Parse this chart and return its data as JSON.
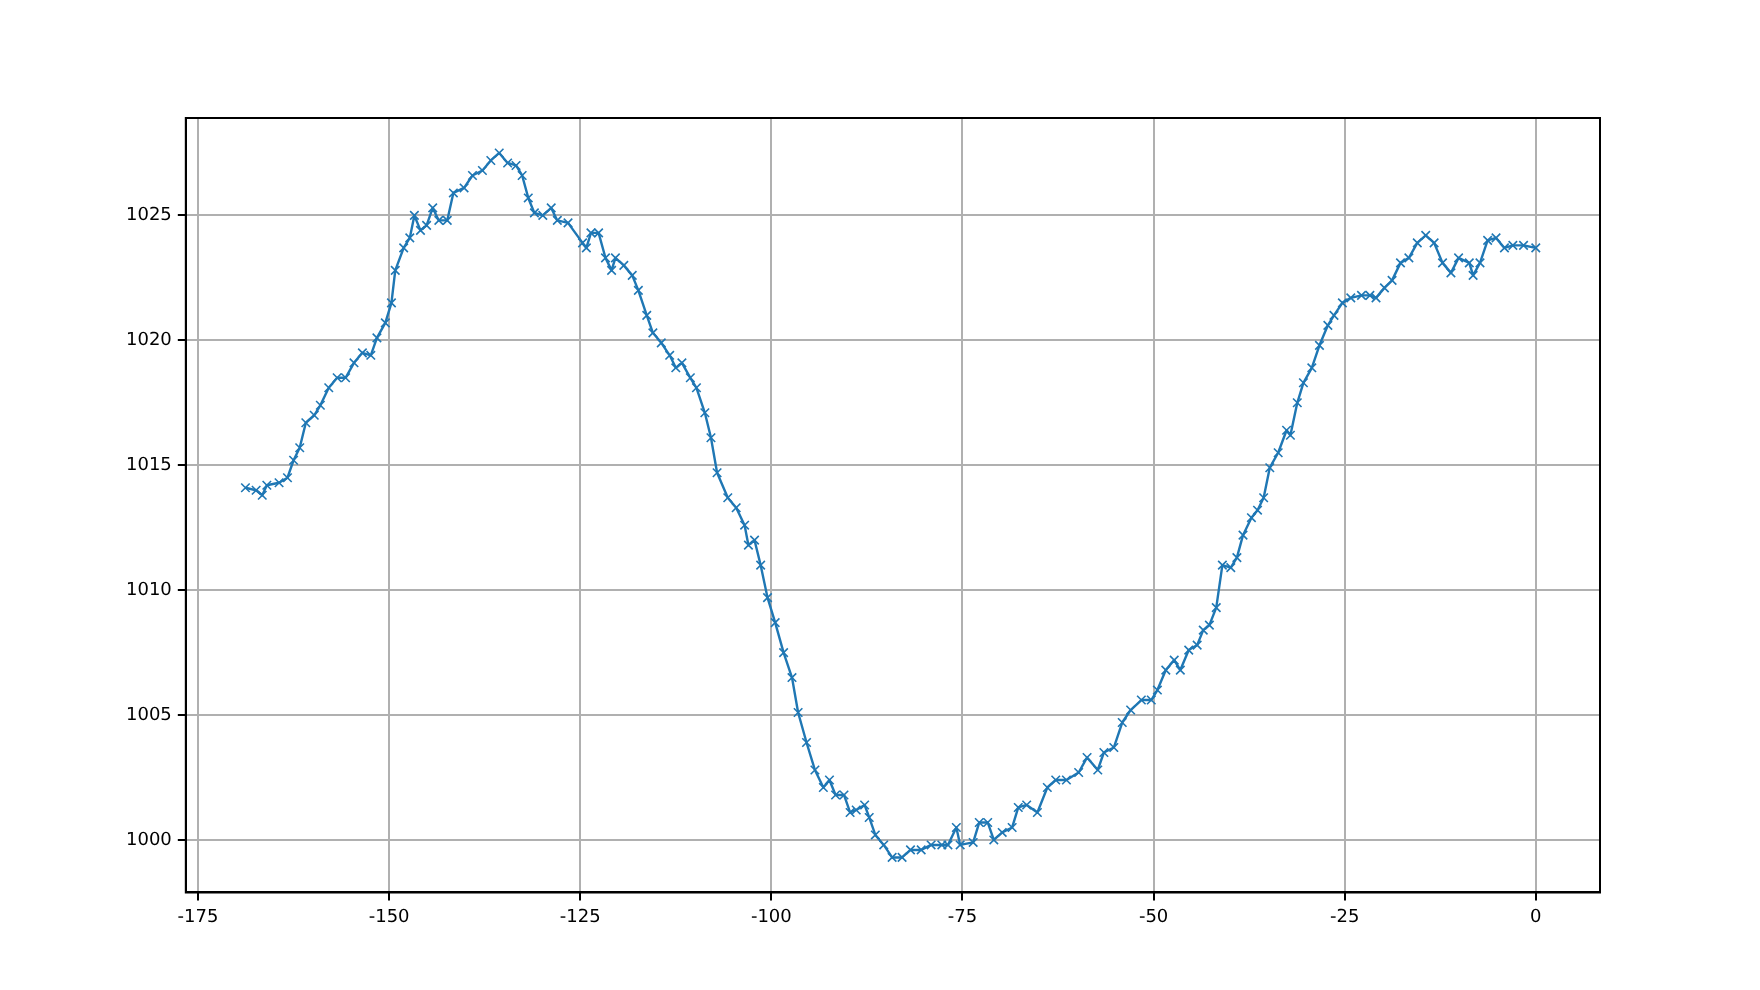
{
  "chart_data": {
    "type": "line",
    "color": "#1f77b4",
    "marker": "cross",
    "grid": true,
    "xlim": [
      -176.6,
      8.4
    ],
    "ylim": [
      997.9,
      1028.9
    ],
    "xticks": [
      -175,
      -150,
      -125,
      -100,
      -75,
      -50,
      -25,
      0
    ],
    "yticks": [
      1000,
      1005,
      1010,
      1015,
      1020,
      1025
    ],
    "x": [
      -168.8,
      -167.4,
      -166.6,
      -166,
      -164.4,
      -163.3,
      -162.5,
      -161.7,
      -160.9,
      -159.8,
      -159,
      -157.9,
      -156.8,
      -155.7,
      -154.6,
      -153.5,
      -152.4,
      -151.6,
      -150.5,
      -149.7,
      -149.2,
      -148.1,
      -147.3,
      -146.7,
      -145.9,
      -145.1,
      -144.3,
      -143.5,
      -142.4,
      -141.6,
      -140.2,
      -139.1,
      -137.8,
      -136.7,
      -135.6,
      -134.5,
      -133.4,
      -132.6,
      -131.8,
      -131,
      -129.9,
      -128.8,
      -128,
      -126.6,
      -124.7,
      -124.2,
      -123.6,
      -122.6,
      -121.7,
      -120.9,
      -120.4,
      -119.3,
      -118.2,
      -117.4,
      -116.3,
      -115.5,
      -114.4,
      -113.3,
      -112.5,
      -111.7,
      -110.6,
      -109.8,
      -108.7,
      -107.9,
      -107.1,
      -105.7,
      -104.6,
      -103.5,
      -103,
      -102.2,
      -101.4,
      -100.5,
      -99.5,
      -98.4,
      -97.3,
      -96.5,
      -95.4,
      -94.3,
      -93.2,
      -92.4,
      -91.6,
      -90.5,
      -89.7,
      -88.9,
      -87.8,
      -87.2,
      -86.4,
      -85.3,
      -84.2,
      -82.9,
      -81.8,
      -80.4,
      -79.1,
      -77.7,
      -76.9,
      -75.8,
      -75.3,
      -73.6,
      -72.8,
      -71.7,
      -70.9,
      -69.8,
      -68.5,
      -67.7,
      -66.6,
      -65.2,
      -63.9,
      -62.8,
      -61.4,
      -59.8,
      -58.7,
      -57.3,
      -56.5,
      -55.2,
      -54.1,
      -53,
      -51.6,
      -50.3,
      -49.5,
      -48.4,
      -47.3,
      -46.5,
      -45.4,
      -44.3,
      -43.5,
      -42.7,
      -41.8,
      -41,
      -39.9,
      -39.1,
      -38.3,
      -37.2,
      -36.4,
      -35.6,
      -34.8,
      -33.7,
      -32.6,
      -32.1,
      -31.2,
      -30.4,
      -29.3,
      -28.3,
      -27.2,
      -26.4,
      -25.3,
      -24.2,
      -22.8,
      -21.7,
      -20.9,
      -19.8,
      -18.8,
      -17.7,
      -16.6,
      -15.5,
      -14.4,
      -13.3,
      -12.2,
      -11.1,
      -10.1,
      -8.7,
      -8.2,
      -7.3,
      -6.3,
      -5.2,
      -4.1,
      -3,
      -1.6,
      0
    ],
    "values": [
      1014.1,
      1014,
      1013.8,
      1014.2,
      1014.3,
      1014.5,
      1015.2,
      1015.7,
      1016.7,
      1017,
      1017.4,
      1018.1,
      1018.5,
      1018.5,
      1019.1,
      1019.5,
      1019.4,
      1020.1,
      1020.7,
      1021.5,
      1022.8,
      1023.7,
      1024.1,
      1025,
      1024.4,
      1024.6,
      1025.3,
      1024.8,
      1024.8,
      1025.9,
      1026.1,
      1026.6,
      1026.8,
      1027.2,
      1027.5,
      1027.1,
      1027,
      1026.6,
      1025.7,
      1025.1,
      1025,
      1025.3,
      1024.8,
      1024.7,
      1023.9,
      1023.7,
      1024.3,
      1024.3,
      1023.3,
      1022.8,
      1023.3,
      1023,
      1022.6,
      1022,
      1021,
      1020.3,
      1019.9,
      1019.4,
      1018.9,
      1019.1,
      1018.5,
      1018.1,
      1017.1,
      1016.1,
      1014.7,
      1013.7,
      1013.3,
      1012.6,
      1011.8,
      1012,
      1011,
      1009.7,
      1008.7,
      1007.5,
      1006.5,
      1005.1,
      1003.9,
      1002.8,
      1002.1,
      1002.4,
      1001.8,
      1001.8,
      1001.1,
      1001.2,
      1001.4,
      1000.9,
      1000.2,
      999.8,
      999.3,
      999.3,
      999.6,
      999.6,
      999.8,
      999.8,
      999.8,
      1000.5,
      999.8,
      999.9,
      1000.7,
      1000.7,
      1000,
      1000.3,
      1000.5,
      1001.3,
      1001.4,
      1001.1,
      1002.1,
      1002.4,
      1002.4,
      1002.7,
      1003.3,
      1002.8,
      1003.5,
      1003.7,
      1004.7,
      1005.2,
      1005.6,
      1005.6,
      1006,
      1006.8,
      1007.2,
      1006.8,
      1007.6,
      1007.8,
      1008.4,
      1008.6,
      1009.3,
      1011,
      1010.9,
      1011.3,
      1012.2,
      1012.9,
      1013.2,
      1013.7,
      1014.9,
      1015.5,
      1016.4,
      1016.2,
      1017.5,
      1018.3,
      1018.9,
      1019.8,
      1020.6,
      1021,
      1021.5,
      1021.7,
      1021.8,
      1021.8,
      1021.7,
      1022.1,
      1022.4,
      1023.1,
      1023.3,
      1023.9,
      1024.2,
      1023.9,
      1023.1,
      1022.7,
      1023.3,
      1023.1,
      1022.6,
      1023.1,
      1024,
      1024.1,
      1023.7,
      1023.8,
      1023.8,
      1023.7
    ]
  }
}
